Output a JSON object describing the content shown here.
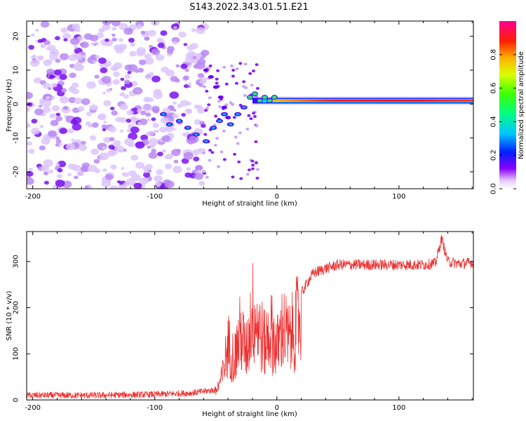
{
  "title": "S143.2022.343.01.51.E21",
  "colors": {
    "snr_line": "#ee3030",
    "axis": "#000000"
  },
  "chart_data": [
    {
      "type": "heatmap",
      "name": "spectrogram",
      "xlabel": "Height of straight line (km)",
      "ylabel": "Frequency (Hz)",
      "xlim": [
        -205,
        161
      ],
      "ylim": [
        -25,
        24.5
      ],
      "xticks": [
        -200,
        -100,
        0,
        100
      ],
      "yticks": [
        -20,
        -10,
        0,
        10,
        20
      ],
      "colorbar": {
        "label": "Normalized spectral amplitude",
        "range": [
          0,
          1
        ],
        "ticks": [
          0.0,
          0.2,
          0.4,
          0.6,
          0.8
        ],
        "tick_labels": [
          "0.0",
          "0.2",
          "0.4",
          "0.6",
          "0.8"
        ]
      },
      "noise_region_x": [
        -205,
        -58
      ],
      "signal_band": {
        "x": [
          -20,
          161
        ],
        "frequency_hz": 1.0
      }
    },
    {
      "type": "line",
      "name": "snr",
      "xlabel": "Height of straight line (km)",
      "ylabel": "SNR (10 * v/v)",
      "xlim": [
        -205,
        161
      ],
      "ylim": [
        0,
        365
      ],
      "xticks": [
        -200,
        -100,
        0,
        100
      ],
      "yticks": [
        0,
        100,
        200,
        300
      ],
      "series": [
        {
          "name": "SNR",
          "x": [
            -205,
            -150,
            -100,
            -70,
            -50,
            -45,
            -40,
            -35,
            -30,
            -25,
            -20,
            -15,
            -10,
            -5,
            0,
            5,
            10,
            15,
            20,
            25,
            30,
            40,
            50,
            60,
            80,
            100,
            120,
            130,
            135,
            140,
            150,
            161
          ],
          "y": [
            10,
            10,
            12,
            15,
            22,
            60,
            150,
            110,
            180,
            130,
            240,
            200,
            150,
            190,
            140,
            200,
            160,
            200,
            230,
            255,
            275,
            285,
            293,
            293,
            293,
            293,
            293,
            296,
            350,
            300,
            295,
            298
          ]
        }
      ]
    }
  ]
}
